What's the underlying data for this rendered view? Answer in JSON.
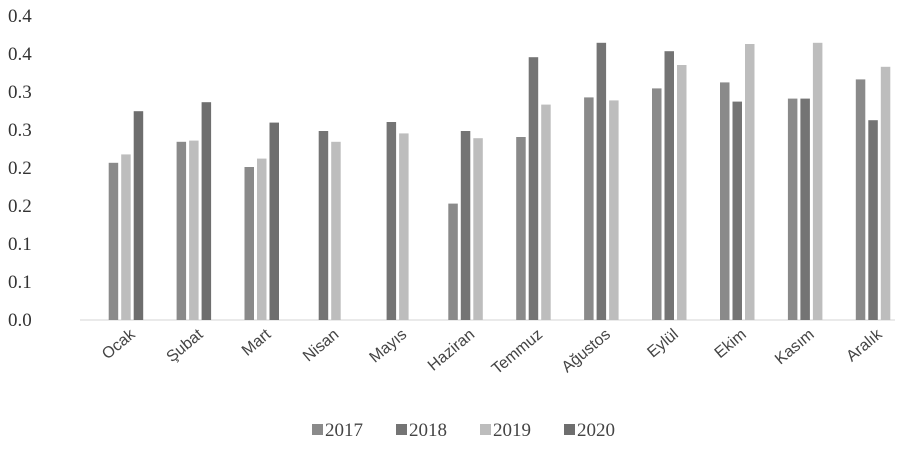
{
  "chart_data": {
    "type": "bar",
    "categories": [
      "Ocak",
      "Şubat",
      "Mart",
      "Nisan",
      "Mayıs",
      "Haziran",
      "Temmuz",
      "Ağustos",
      "Eylül",
      "Ekim",
      "Kasım",
      "Aralık"
    ],
    "series": [
      {
        "name": "2017",
        "values": [
          0.262,
          0.297,
          0.255,
          null,
          null,
          0.194,
          0.305,
          0.371,
          0.386,
          0.396,
          0.369,
          0.401
        ]
      },
      {
        "name": "2018",
        "values": [
          null,
          null,
          null,
          0.315,
          0.33,
          0.315,
          0.438,
          0.462,
          0.448,
          0.364,
          0.369,
          0.333
        ]
      },
      {
        "name": "2019",
        "values": [
          0.276,
          0.299,
          0.269,
          0.297,
          0.311,
          0.303,
          0.359,
          0.366,
          0.425,
          0.46,
          0.462,
          0.422
        ]
      },
      {
        "name": "2020",
        "values": [
          0.348,
          0.363,
          0.329,
          null,
          null,
          null,
          null,
          null,
          null,
          null,
          null,
          null
        ]
      }
    ],
    "y_tick_labels": [
      "0.0",
      "0.1",
      "0.1",
      "0.2",
      "0.2",
      "0.3",
      "0.3",
      "0.4",
      "0.4"
    ],
    "ylim": [
      0,
      0.5
    ],
    "grid": false,
    "legend_position": "bottom",
    "title": "",
    "xlabel": "",
    "ylabel": "",
    "colors": [
      "#8a8a8a",
      "#747474",
      "#bdbdbd",
      "#6e6e6e"
    ]
  }
}
